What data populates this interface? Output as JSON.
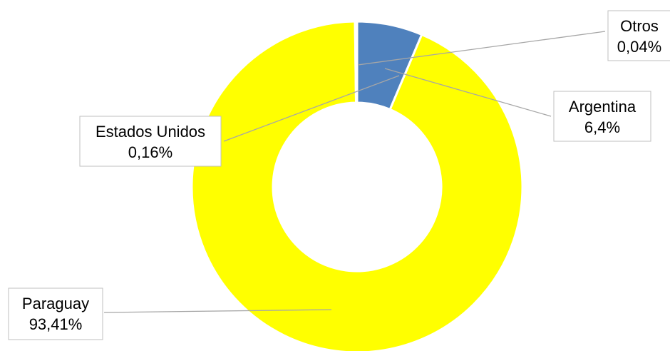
{
  "chart_data": {
    "type": "pie",
    "variant": "doughnut",
    "categories": [
      "Argentina",
      "Paraguay",
      "Estados Unidos",
      "Otros"
    ],
    "values": [
      6.4,
      93.41,
      0.16,
      0.04
    ],
    "value_labels": [
      "6,4%",
      "93,41%",
      "0,16%",
      "0,04%"
    ],
    "colors": [
      "#4f81bd",
      "#ffff00",
      "#ffff00",
      "#ffff00"
    ],
    "title": "",
    "legend": "none",
    "start_angle_deg": 0,
    "direction": "clockwise"
  }
}
